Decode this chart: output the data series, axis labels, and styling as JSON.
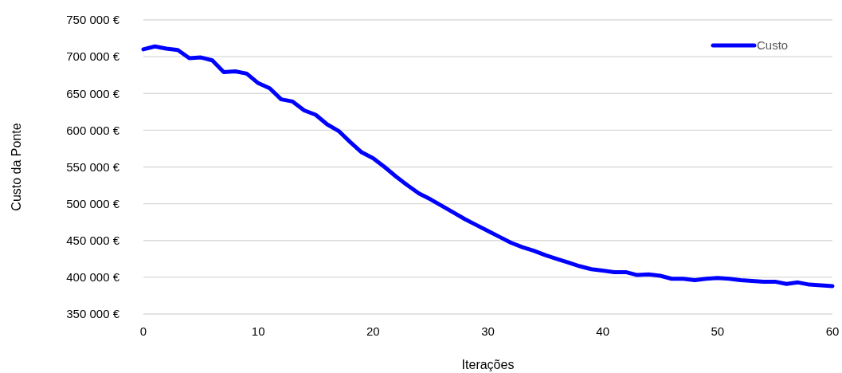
{
  "chart_data": {
    "type": "line",
    "xlabel": "Iterações",
    "ylabel": "Custo da Ponte",
    "x": [
      0,
      1,
      2,
      3,
      4,
      5,
      6,
      7,
      8,
      9,
      10,
      11,
      12,
      13,
      14,
      15,
      16,
      17,
      18,
      19,
      20,
      21,
      22,
      23,
      24,
      25,
      26,
      27,
      28,
      29,
      30,
      31,
      32,
      33,
      34,
      35,
      36,
      37,
      38,
      39,
      40,
      41,
      42,
      43,
      44,
      45,
      46,
      47,
      48,
      49,
      50,
      51,
      52,
      53,
      54,
      55,
      56,
      57,
      58,
      59,
      60
    ],
    "series": [
      {
        "name": "Custo",
        "color": "#0000ff",
        "values": [
          710000,
          714000,
          711000,
          709000,
          698000,
          699000,
          695000,
          679000,
          680000,
          677000,
          664000,
          657000,
          642000,
          639000,
          627000,
          621000,
          608000,
          599000,
          584000,
          570000,
          562000,
          550000,
          537000,
          525000,
          514000,
          506000,
          497000,
          488000,
          479000,
          471000,
          463000,
          455000,
          447000,
          441000,
          436000,
          430000,
          425000,
          420000,
          415000,
          411000,
          409000,
          407000,
          407000,
          403000,
          404000,
          402000,
          398000,
          398000,
          396000,
          398000,
          399000,
          398000,
          396000,
          395000,
          394000,
          394000,
          391000,
          393000,
          390000,
          389000,
          388000
        ]
      }
    ],
    "xlim": [
      0,
      60
    ],
    "xticks": [
      0,
      10,
      20,
      30,
      40,
      50,
      60
    ],
    "ylim": [
      350000,
      750000
    ],
    "yticks": [
      {
        "value": 350000,
        "label": "350 000 €"
      },
      {
        "value": 400000,
        "label": "400 000 €"
      },
      {
        "value": 450000,
        "label": "450 000 €"
      },
      {
        "value": 500000,
        "label": "500 000 €"
      },
      {
        "value": 550000,
        "label": "550 000 €"
      },
      {
        "value": 600000,
        "label": "600 000 €"
      },
      {
        "value": 650000,
        "label": "650 000 €"
      },
      {
        "value": 700000,
        "label": "700 000 €"
      },
      {
        "value": 750000,
        "label": "750 000 €"
      }
    ],
    "grid": "y",
    "legend": "top right",
    "marker": "none",
    "line_style": "solid"
  }
}
